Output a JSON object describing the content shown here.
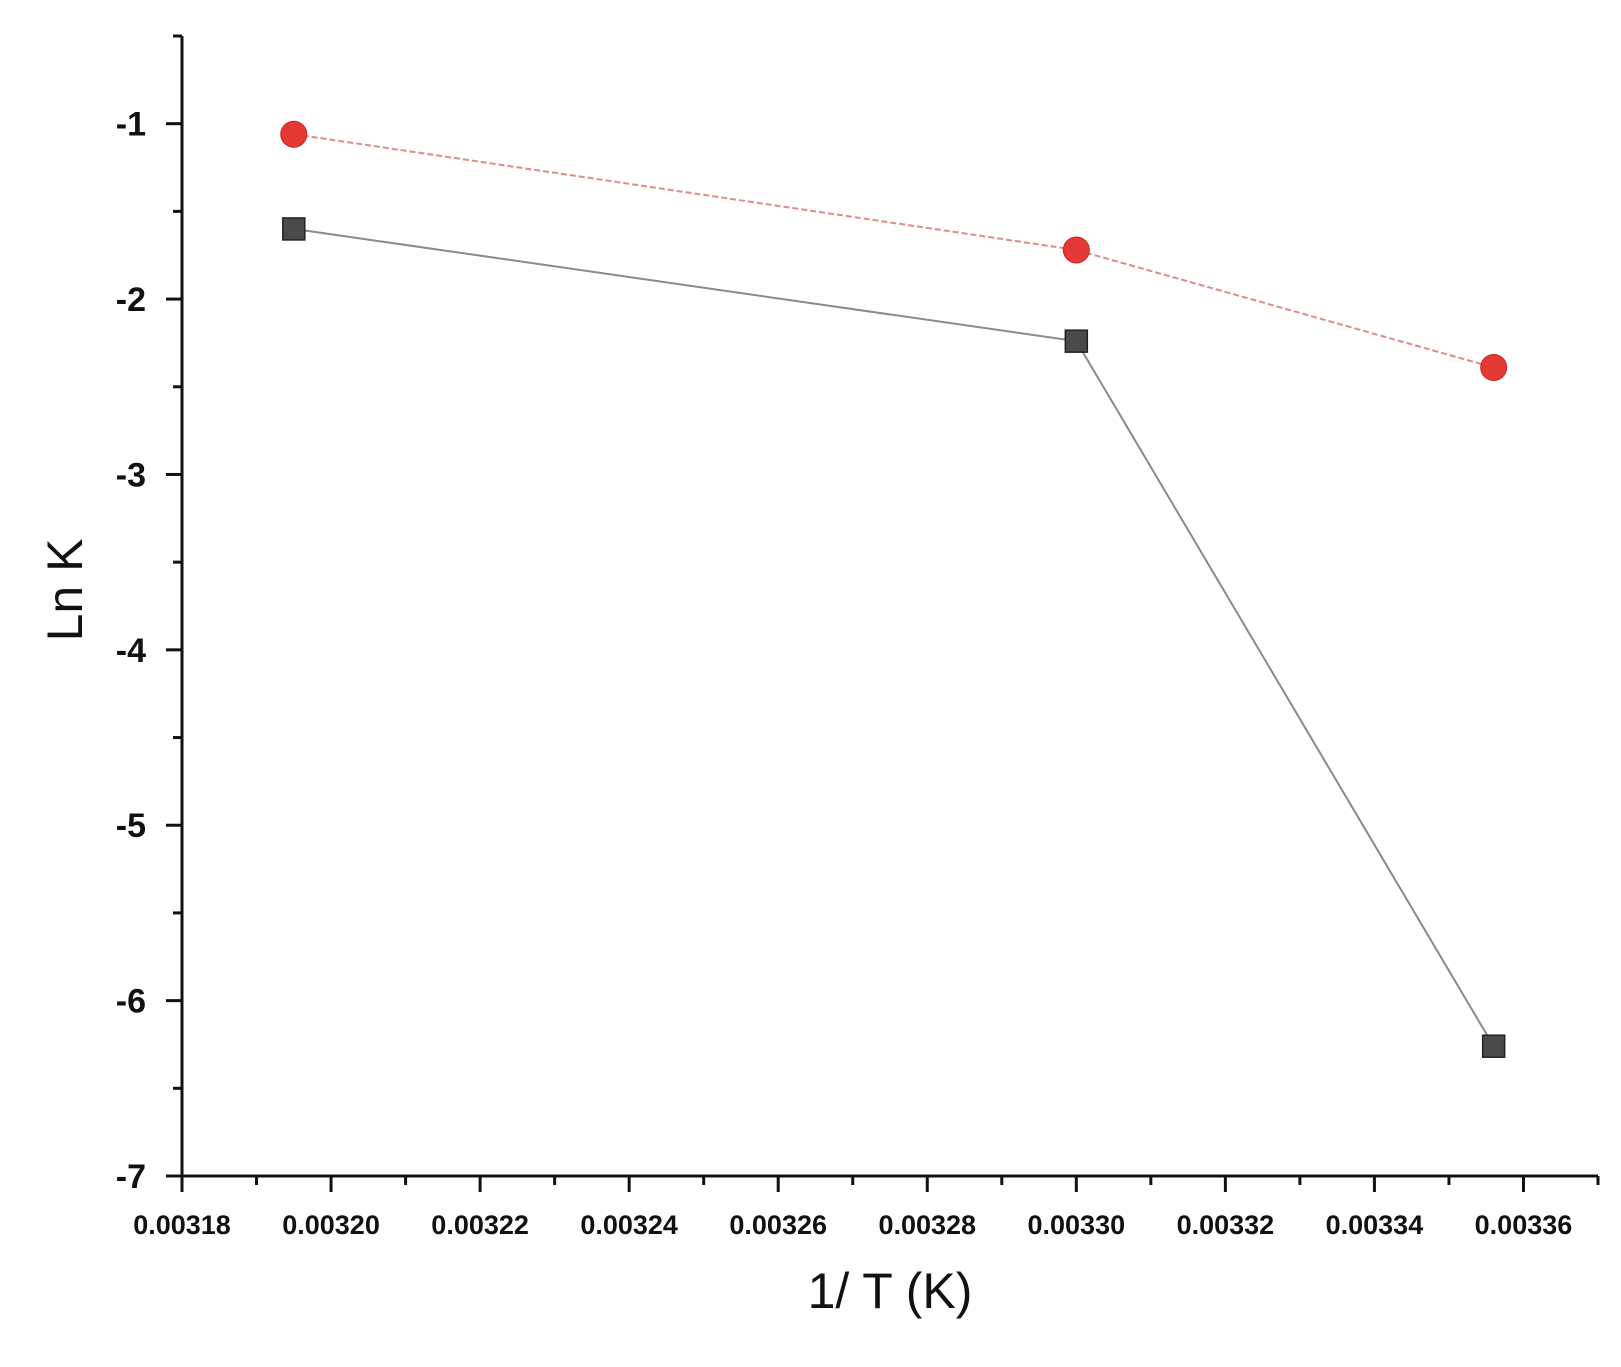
{
  "chart_data": {
    "type": "line",
    "title": "",
    "xlabel": "1/ T (K)",
    "ylabel": "Ln K",
    "xlim": [
      0.00318,
      0.00337
    ],
    "ylim": [
      -7,
      -0.5
    ],
    "xticks": [
      "0.00318",
      "0.00320",
      "0.00322",
      "0.00324",
      "0.00326",
      "0.00328",
      "0.00330",
      "0.00332",
      "0.00334",
      "0.00336"
    ],
    "xtick_values": [
      0.00318,
      0.0032,
      0.00322,
      0.00324,
      0.00326,
      0.00328,
      0.0033,
      0.00332,
      0.00334,
      0.00336
    ],
    "yticks": [
      "-1",
      "-2",
      "-3",
      "-4",
      "-5",
      "-6",
      "-7"
    ],
    "ytick_values": [
      -1,
      -2,
      -3,
      -4,
      -5,
      -6,
      -7
    ],
    "grid": false,
    "legend": "none",
    "series": [
      {
        "marker": "square",
        "color": "#4a4a4a",
        "line_color": "#8a8a8a",
        "x": [
          0.003195,
          0.0033,
          0.003356
        ],
        "y": [
          -1.6,
          -2.24,
          -6.26
        ]
      },
      {
        "marker": "circle",
        "color": "#e53935",
        "line_color": "#e08a8a",
        "x": [
          0.003195,
          0.0033,
          0.003356
        ],
        "y": [
          -1.06,
          -1.72,
          -2.39
        ]
      }
    ]
  }
}
